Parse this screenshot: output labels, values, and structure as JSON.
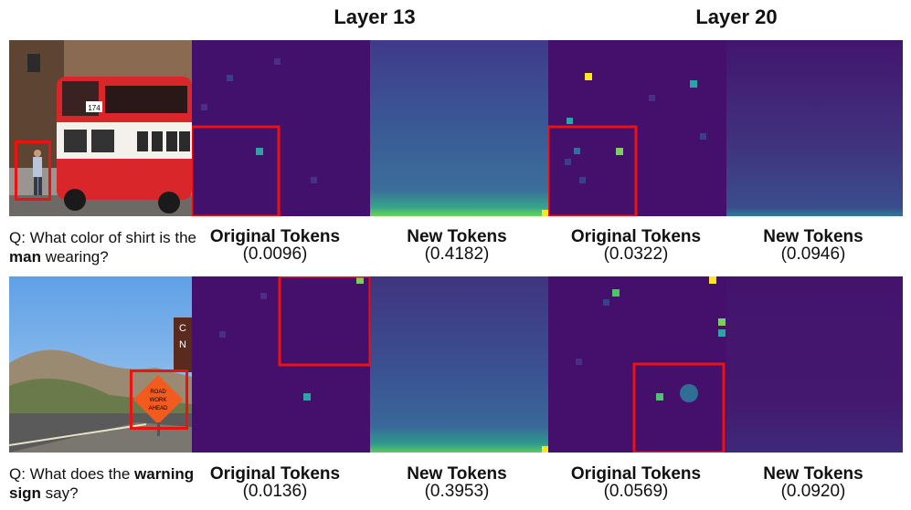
{
  "header": {
    "layer_a": "Layer 13",
    "layer_b": "Layer 20"
  },
  "rows": [
    {
      "question_prefix": "Q: What color of shirt is the ",
      "question_bold": "man",
      "question_suffix": " wearing?",
      "bus_number": "174",
      "captions": [
        {
          "title": "Original Tokens",
          "score": "(0.0096)"
        },
        {
          "title": "New Tokens",
          "score": "(0.4182)"
        },
        {
          "title": "Original Tokens",
          "score": "(0.0322)"
        },
        {
          "title": "New Tokens",
          "score": "(0.0946)"
        }
      ]
    },
    {
      "question_prefix": "Q: What does the ",
      "question_bold": "warning sign",
      "question_suffix": " say?",
      "sign_text": [
        "ROAD",
        "WORK",
        "AHEAD"
      ],
      "building_letters": [
        "C",
        "N"
      ],
      "captions": [
        {
          "title": "Original Tokens",
          "score": "(0.0136)"
        },
        {
          "title": "New Tokens",
          "score": "(0.3953)"
        },
        {
          "title": "Original Tokens",
          "score": "(0.0569)"
        },
        {
          "title": "New Tokens",
          "score": "(0.0920)"
        }
      ]
    }
  ],
  "colors": {
    "heat_bg": "#45106b",
    "highlight_box": "#e11111"
  }
}
